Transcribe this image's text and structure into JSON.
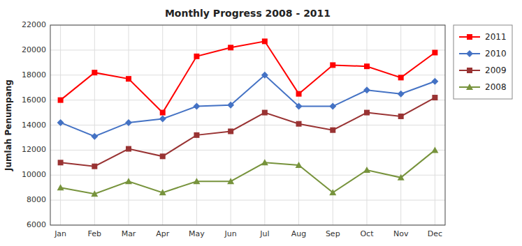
{
  "chart_data": {
    "type": "line",
    "title": "Monthly Progress 2008 - 2011",
    "ylabel": "Jumlah Penumpang",
    "categories": [
      "Jan",
      "Feb",
      "Mar",
      "Apr",
      "May",
      "Jun",
      "Jul",
      "Aug",
      "Sep",
      "Oct",
      "Nov",
      "Dec"
    ],
    "series": [
      {
        "name": "2011",
        "color": "#FF0000",
        "marker": "square",
        "values": [
          16000,
          18200,
          17700,
          15000,
          19500,
          20200,
          20700,
          16500,
          18800,
          18700,
          17800,
          19800
        ]
      },
      {
        "name": "2010",
        "color": "#4472C4",
        "marker": "diamond",
        "values": [
          14200,
          13100,
          14200,
          14500,
          15500,
          15600,
          18000,
          15500,
          15500,
          16800,
          16500,
          17500
        ]
      },
      {
        "name": "2009",
        "color": "#993333",
        "marker": "square",
        "values": [
          11000,
          10700,
          12100,
          11500,
          13200,
          13500,
          15000,
          14100,
          13600,
          15000,
          14700,
          16200
        ]
      },
      {
        "name": "2008",
        "color": "#77933C",
        "marker": "triangle",
        "values": [
          9000,
          8500,
          9500,
          8600,
          9500,
          9500,
          11000,
          10800,
          8600,
          10400,
          9800,
          12000
        ]
      }
    ],
    "ylim": [
      6000,
      22000
    ],
    "yticks": [
      6000,
      8000,
      10000,
      12000,
      14000,
      16000,
      18000,
      20000,
      22000
    ],
    "grid": true,
    "legend": "right"
  }
}
